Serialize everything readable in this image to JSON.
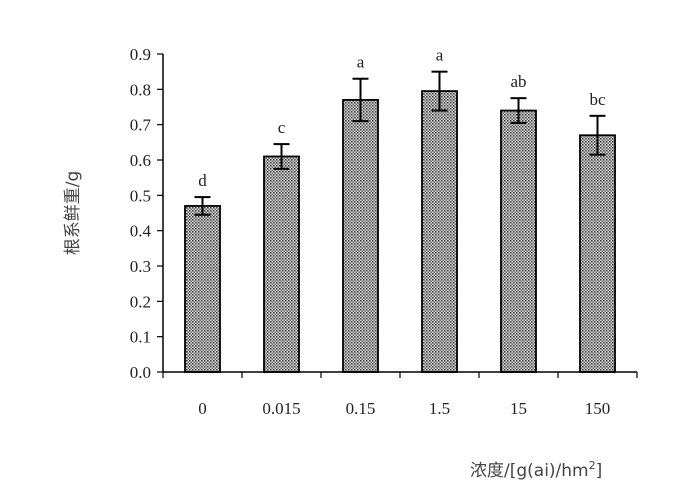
{
  "chart_data": {
    "type": "bar",
    "categories": [
      "0",
      "0.015",
      "0.15",
      "1.5",
      "15",
      "150"
    ],
    "values": [
      0.47,
      0.61,
      0.77,
      0.795,
      0.74,
      0.67
    ],
    "errors": [
      0.025,
      0.035,
      0.06,
      0.055,
      0.035,
      0.055
    ],
    "significance": [
      "d",
      "c",
      "a",
      "a",
      "ab",
      "bc"
    ],
    "yticks": [
      "0.0",
      "0.1",
      "0.2",
      "0.3",
      "0.4",
      "0.5",
      "0.6",
      "0.7",
      "0.8",
      "0.9"
    ],
    "ylim": [
      0,
      0.9
    ],
    "ylabel": "根系鲜重/g",
    "xlabel_main": "浓度/[g(ai)/hm",
    "xlabel_sup": "2",
    "xlabel_end": "]",
    "title": "",
    "grid": false,
    "bar_pattern": "dotted-gray"
  }
}
